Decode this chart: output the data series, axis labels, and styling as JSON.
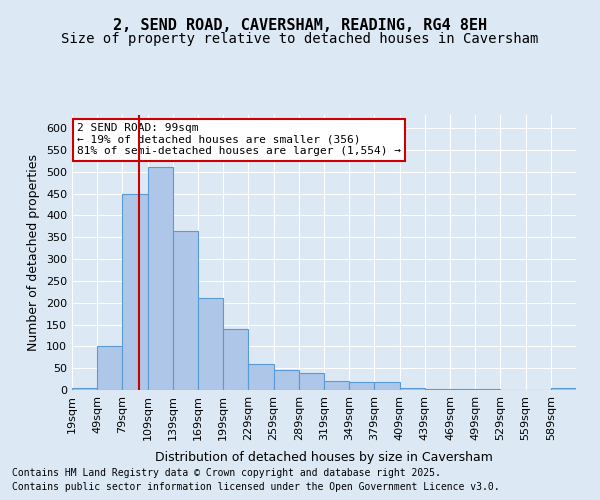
{
  "title_line1": "2, SEND ROAD, CAVERSHAM, READING, RG4 8EH",
  "title_line2": "Size of property relative to detached houses in Caversham",
  "xlabel": "Distribution of detached houses by size in Caversham",
  "ylabel": "Number of detached properties",
  "footer_line1": "Contains HM Land Registry data © Crown copyright and database right 2025.",
  "footer_line2": "Contains public sector information licensed under the Open Government Licence v3.0.",
  "annotation_line1": "2 SEND ROAD: 99sqm",
  "annotation_line2": "← 19% of detached houses are smaller (356)",
  "annotation_line3": "81% of semi-detached houses are larger (1,554) →",
  "property_size": 99,
  "bin_edges": [
    19,
    49,
    79,
    109,
    139,
    169,
    199,
    229,
    259,
    289,
    319,
    349,
    379,
    409,
    439,
    469,
    499,
    529,
    559,
    589,
    619
  ],
  "bar_heights": [
    5,
    100,
    450,
    510,
    365,
    210,
    140,
    60,
    45,
    38,
    20,
    18,
    18,
    5,
    3,
    3,
    3,
    0,
    0,
    5
  ],
  "bar_color": "#aec6e8",
  "bar_edgecolor": "#5b9bd5",
  "vline_color": "#cc0000",
  "vline_x": 99,
  "ylim": [
    0,
    630
  ],
  "yticks": [
    0,
    50,
    100,
    150,
    200,
    250,
    300,
    350,
    400,
    450,
    500,
    550,
    600
  ],
  "background_color": "#dce9f5",
  "plot_bg_color": "#dce9f5",
  "annotation_box_color": "#ffffff",
  "annotation_box_edgecolor": "#cc0000",
  "grid_color": "#ffffff",
  "title_fontsize": 11,
  "subtitle_fontsize": 10,
  "axis_label_fontsize": 9,
  "tick_fontsize": 8,
  "annotation_fontsize": 8,
  "footer_fontsize": 7
}
